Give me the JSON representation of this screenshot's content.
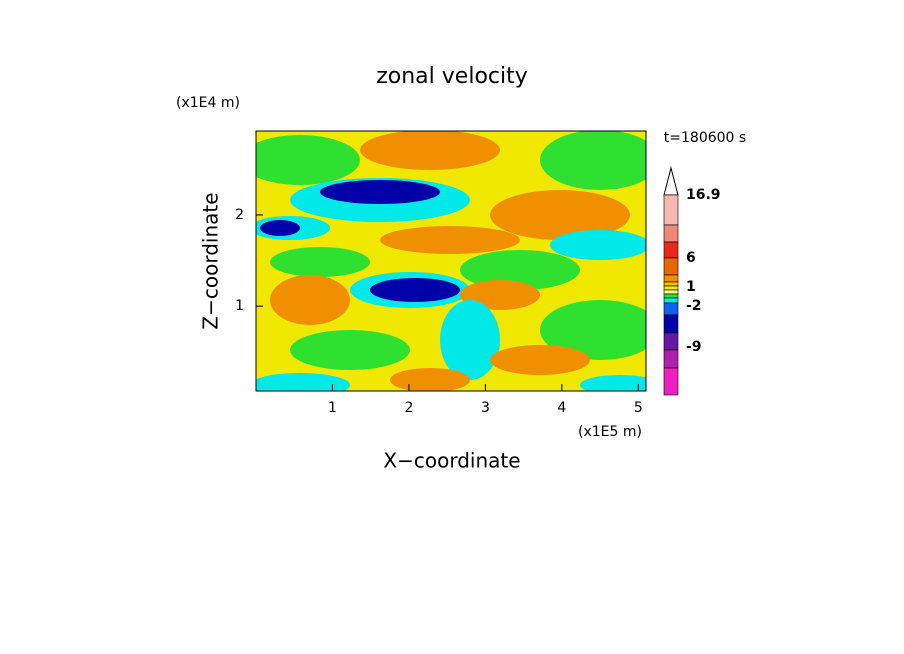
{
  "chart_data": {
    "type": "contour",
    "title": "zonal velocity",
    "x_label": "X−coordinate",
    "y_label": "Z−coordinate",
    "x_unit": "(x1E5 m)",
    "y_unit": "(x1E4 m)",
    "time_label": "t=180600 s",
    "xlim": [
      0,
      5.1
    ],
    "ylim": [
      0.07,
      2.92
    ],
    "xticks": [
      1,
      2,
      3,
      4,
      5
    ],
    "yticks": [
      1,
      2
    ],
    "colorbar": {
      "colors": [
        "#f5b8b0",
        "#f08878",
        "#e82818",
        "#e86800",
        "#f09000",
        "#f8c000",
        "#f0e800",
        "#f8f888",
        "#30e030",
        "#00e8e8",
        "#1060f0",
        "#0000a8",
        "#6818a0",
        "#b020b0",
        "#f020c0"
      ],
      "labels": [
        16.9,
        6,
        1,
        -2,
        -9
      ]
    }
  }
}
